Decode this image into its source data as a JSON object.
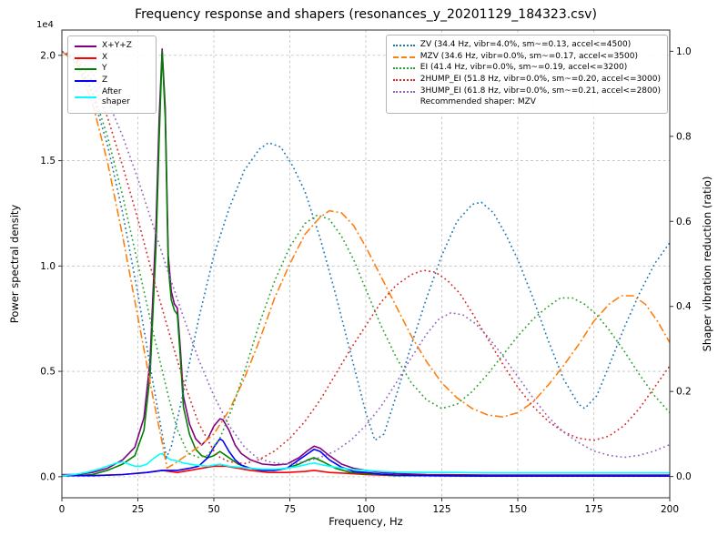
{
  "figure": {
    "title": "Frequency response and shapers (resonances_y_20201129_184323.csv)",
    "xlabel": "Frequency, Hz",
    "ylabel_left": "Power spectral density",
    "ylabel_left_offset": "1e4",
    "ylabel_right": "Shaper vibration reduction (ratio)"
  },
  "chart_data": {
    "type": "line",
    "title": "Frequency response and shapers (resonances_y_20201129_184323.csv)",
    "xlabel": "Frequency, Hz",
    "ylabel": "Power spectral density",
    "ylabel2": "Shaper vibration reduction (ratio)",
    "y_left_multiplier": "1e4",
    "grid": true,
    "xlim": [
      0,
      200
    ],
    "ylim_left": [
      -0.1,
      2.12
    ],
    "ylim_right": [
      -0.05,
      1.05
    ],
    "x_ticks": [
      0,
      25,
      50,
      75,
      100,
      125,
      150,
      175,
      200
    ],
    "y_ticks_left": [
      "0.0",
      "0.5",
      "1.0",
      "1.5",
      "2.0"
    ],
    "y_ticks_right": [
      "0.0",
      "0.2",
      "0.4",
      "0.6",
      "0.8",
      "1.0"
    ],
    "psd_series": [
      {
        "name": "X+Y+Z",
        "color": "#800080",
        "style": "solid",
        "x": [
          0,
          5,
          10,
          15,
          20,
          24,
          27,
          29,
          31,
          32,
          33,
          34,
          35,
          36,
          37,
          38,
          39,
          40,
          42,
          44,
          46,
          48,
          50,
          52,
          53,
          55,
          57,
          59,
          62,
          66,
          70,
          74,
          78,
          81,
          83,
          85,
          88,
          92,
          96,
          100,
          105,
          110,
          120,
          140,
          160,
          180,
          200
        ],
        "y": [
          0.01,
          0.01,
          0.02,
          0.04,
          0.08,
          0.14,
          0.28,
          0.55,
          1.2,
          1.7,
          2.03,
          1.75,
          1.05,
          0.88,
          0.82,
          0.8,
          0.6,
          0.38,
          0.25,
          0.18,
          0.15,
          0.18,
          0.24,
          0.275,
          0.27,
          0.22,
          0.15,
          0.11,
          0.08,
          0.06,
          0.055,
          0.06,
          0.09,
          0.125,
          0.145,
          0.135,
          0.1,
          0.06,
          0.04,
          0.03,
          0.02,
          0.015,
          0.01,
          0.008,
          0.008,
          0.008,
          0.008
        ]
      },
      {
        "name": "X",
        "color": "#ff0000",
        "style": "solid",
        "x": [
          0,
          10,
          20,
          28,
          33,
          38,
          42,
          46,
          50,
          54,
          58,
          62,
          68,
          74,
          80,
          83,
          88,
          95,
          100,
          110,
          120,
          140,
          160,
          180,
          200
        ],
        "y": [
          0.005,
          0.005,
          0.01,
          0.02,
          0.03,
          0.02,
          0.03,
          0.04,
          0.05,
          0.05,
          0.04,
          0.03,
          0.02,
          0.02,
          0.025,
          0.03,
          0.02,
          0.015,
          0.01,
          0.005,
          0.005,
          0.003,
          0.003,
          0.003,
          0.003
        ]
      },
      {
        "name": "Y",
        "color": "#008000",
        "style": "solid",
        "x": [
          0,
          5,
          10,
          15,
          20,
          24,
          27,
          29,
          31,
          32,
          33,
          34,
          35,
          36,
          37,
          38,
          39,
          40,
          42,
          44,
          46,
          48,
          50,
          52,
          54,
          56,
          58,
          62,
          66,
          70,
          74,
          78,
          81,
          83,
          86,
          90,
          95,
          100,
          105,
          110,
          120,
          140,
          160,
          180,
          200
        ],
        "y": [
          0.005,
          0.005,
          0.01,
          0.03,
          0.06,
          0.1,
          0.22,
          0.48,
          1.1,
          1.6,
          2.02,
          1.7,
          1.0,
          0.84,
          0.79,
          0.77,
          0.56,
          0.33,
          0.2,
          0.13,
          0.1,
          0.09,
          0.1,
          0.12,
          0.1,
          0.08,
          0.06,
          0.04,
          0.03,
          0.03,
          0.04,
          0.06,
          0.08,
          0.09,
          0.07,
          0.04,
          0.02,
          0.015,
          0.01,
          0.005,
          0.005,
          0.003,
          0.003,
          0.003,
          0.003
        ]
      },
      {
        "name": "Z",
        "color": "#0000ff",
        "style": "solid",
        "x": [
          0,
          10,
          20,
          28,
          33,
          38,
          42,
          45,
          48,
          50,
          52,
          53,
          55,
          57,
          59,
          62,
          66,
          70,
          74,
          78,
          81,
          83,
          85,
          88,
          92,
          96,
          100,
          105,
          110,
          120,
          140,
          160,
          180,
          200
        ],
        "y": [
          0.005,
          0.005,
          0.01,
          0.02,
          0.03,
          0.03,
          0.04,
          0.05,
          0.09,
          0.14,
          0.18,
          0.17,
          0.12,
          0.08,
          0.055,
          0.04,
          0.03,
          0.03,
          0.04,
          0.08,
          0.11,
          0.13,
          0.12,
          0.08,
          0.045,
          0.025,
          0.02,
          0.012,
          0.008,
          0.005,
          0.003,
          0.003,
          0.003,
          0.003
        ]
      },
      {
        "name": "After shaper",
        "color": "#00ffff",
        "style": "solid",
        "x": [
          0,
          4,
          8,
          12,
          15,
          18,
          20,
          22,
          24,
          26,
          28,
          30,
          32,
          33,
          34,
          36,
          38,
          40,
          44,
          48,
          52,
          55,
          58,
          62,
          66,
          70,
          74,
          78,
          81,
          83,
          86,
          90,
          95,
          100,
          105,
          110,
          120,
          130,
          140,
          150,
          160,
          170,
          180,
          190,
          200
        ],
        "y": [
          0.005,
          0.01,
          0.02,
          0.035,
          0.05,
          0.065,
          0.07,
          0.06,
          0.05,
          0.05,
          0.06,
          0.085,
          0.105,
          0.11,
          0.095,
          0.08,
          0.075,
          0.065,
          0.055,
          0.05,
          0.06,
          0.05,
          0.045,
          0.04,
          0.035,
          0.035,
          0.04,
          0.05,
          0.06,
          0.065,
          0.055,
          0.045,
          0.035,
          0.03,
          0.025,
          0.022,
          0.02,
          0.02,
          0.018,
          0.018,
          0.018,
          0.018,
          0.018,
          0.018,
          0.018
        ]
      }
    ],
    "shaper_series": [
      {
        "name": "ZV",
        "label": "ZV (34.4 Hz, vibr=4.0%, sm~=0.13, accel<=4500)",
        "color": "#1f77b4",
        "style": "dotted",
        "x": [
          0,
          5,
          10,
          15,
          20,
          25,
          30,
          33,
          34.4,
          36,
          40,
          45,
          50,
          55,
          60,
          65,
          68,
          72,
          76,
          80,
          85,
          90,
          95,
          100,
          103,
          106,
          110,
          115,
          120,
          125,
          130,
          135,
          138,
          142,
          146,
          150,
          155,
          160,
          165,
          170,
          172,
          176,
          180,
          185,
          190,
          195,
          200
        ],
        "y": [
          1.0,
          0.975,
          0.9,
          0.78,
          0.62,
          0.43,
          0.22,
          0.1,
          0.045,
          0.07,
          0.2,
          0.37,
          0.52,
          0.63,
          0.72,
          0.77,
          0.785,
          0.775,
          0.73,
          0.67,
          0.56,
          0.43,
          0.29,
          0.15,
          0.085,
          0.1,
          0.19,
          0.31,
          0.42,
          0.52,
          0.6,
          0.64,
          0.645,
          0.62,
          0.57,
          0.51,
          0.42,
          0.32,
          0.23,
          0.17,
          0.16,
          0.19,
          0.26,
          0.35,
          0.43,
          0.5,
          0.55
        ]
      },
      {
        "name": "MZV",
        "label": "MZV (34.6 Hz, vibr=0.0%, sm~=0.17, accel<=3500)",
        "color": "#ff7f0e",
        "style": "dashdot",
        "x": [
          0,
          5,
          10,
          15,
          20,
          25,
          30,
          33,
          34.6,
          37,
          40,
          45,
          50,
          55,
          60,
          65,
          70,
          75,
          80,
          85,
          88,
          92,
          96,
          100,
          105,
          110,
          115,
          120,
          125,
          130,
          135,
          140,
          145,
          150,
          155,
          160,
          165,
          170,
          175,
          180,
          184,
          188,
          192,
          196,
          200
        ],
        "y": [
          1.0,
          0.97,
          0.88,
          0.74,
          0.565,
          0.375,
          0.185,
          0.08,
          0.02,
          0.03,
          0.045,
          0.07,
          0.1,
          0.155,
          0.23,
          0.32,
          0.42,
          0.5,
          0.57,
          0.61,
          0.625,
          0.62,
          0.59,
          0.54,
          0.47,
          0.4,
          0.33,
          0.27,
          0.22,
          0.185,
          0.16,
          0.145,
          0.14,
          0.15,
          0.175,
          0.215,
          0.26,
          0.31,
          0.365,
          0.405,
          0.425,
          0.425,
          0.405,
          0.365,
          0.315
        ]
      },
      {
        "name": "EI",
        "label": "EI (41.4 Hz, vibr=0.0%, sm~=0.19, accel<=3200)",
        "color": "#2ca02c",
        "style": "dotted",
        "x": [
          0,
          5,
          10,
          15,
          20,
          25,
          30,
          35,
          38,
          41.4,
          45,
          48,
          52,
          56,
          60,
          65,
          70,
          75,
          80,
          84,
          88,
          92,
          96,
          100,
          105,
          110,
          115,
          120,
          125,
          130,
          135,
          140,
          145,
          150,
          155,
          160,
          164,
          168,
          172,
          176,
          180,
          185,
          190,
          195,
          200
        ],
        "y": [
          1.0,
          0.975,
          0.91,
          0.8,
          0.66,
          0.5,
          0.34,
          0.19,
          0.11,
          0.055,
          0.045,
          0.05,
          0.09,
          0.16,
          0.245,
          0.36,
          0.46,
          0.54,
          0.595,
          0.615,
          0.605,
          0.565,
          0.51,
          0.44,
          0.355,
          0.28,
          0.22,
          0.18,
          0.16,
          0.17,
          0.2,
          0.24,
          0.285,
          0.33,
          0.37,
          0.4,
          0.42,
          0.42,
          0.405,
          0.38,
          0.345,
          0.295,
          0.24,
          0.19,
          0.15
        ]
      },
      {
        "name": "2HUMP_EI",
        "label": "2HUMP_EI (51.8 Hz, vibr=0.0%, sm~=0.20, accel<=3000)",
        "color": "#d62728",
        "style": "dotted",
        "x": [
          0,
          5,
          10,
          15,
          20,
          25,
          30,
          35,
          40,
          45,
          50,
          52,
          55,
          60,
          65,
          70,
          75,
          80,
          85,
          90,
          95,
          100,
          105,
          110,
          115,
          119,
          123,
          127,
          131,
          135,
          140,
          145,
          150,
          155,
          160,
          165,
          170,
          175,
          180,
          185,
          190,
          195,
          200
        ],
        "y": [
          1.0,
          0.98,
          0.93,
          0.845,
          0.73,
          0.605,
          0.47,
          0.345,
          0.225,
          0.125,
          0.06,
          0.045,
          0.035,
          0.03,
          0.04,
          0.06,
          0.09,
          0.13,
          0.18,
          0.24,
          0.3,
          0.355,
          0.41,
          0.45,
          0.475,
          0.485,
          0.48,
          0.46,
          0.43,
          0.385,
          0.325,
          0.265,
          0.21,
          0.165,
          0.13,
          0.105,
          0.09,
          0.085,
          0.095,
          0.12,
          0.16,
          0.21,
          0.26
        ]
      },
      {
        "name": "3HUMP_EI",
        "label": "3HUMP_EI (61.8 Hz, vibr=0.0%, sm~=0.21, accel<=2800)",
        "color": "#9467bd",
        "style": "dotted",
        "x": [
          0,
          5,
          10,
          15,
          20,
          25,
          30,
          35,
          40,
          45,
          50,
          55,
          60,
          64,
          68,
          72,
          76,
          80,
          85,
          90,
          95,
          100,
          105,
          110,
          115,
          120,
          124,
          128,
          132,
          136,
          140,
          145,
          150,
          155,
          160,
          165,
          170,
          175,
          180,
          185,
          190,
          195,
          200
        ],
        "y": [
          1.0,
          0.985,
          0.95,
          0.885,
          0.8,
          0.7,
          0.59,
          0.48,
          0.375,
          0.275,
          0.19,
          0.12,
          0.07,
          0.045,
          0.035,
          0.03,
          0.03,
          0.035,
          0.045,
          0.06,
          0.085,
          0.12,
          0.165,
          0.22,
          0.28,
          0.335,
          0.37,
          0.385,
          0.38,
          0.36,
          0.33,
          0.285,
          0.235,
          0.185,
          0.14,
          0.105,
          0.08,
          0.06,
          0.05,
          0.045,
          0.05,
          0.06,
          0.075
        ]
      }
    ],
    "recommended_label": "Recommended shaper: MZV"
  }
}
